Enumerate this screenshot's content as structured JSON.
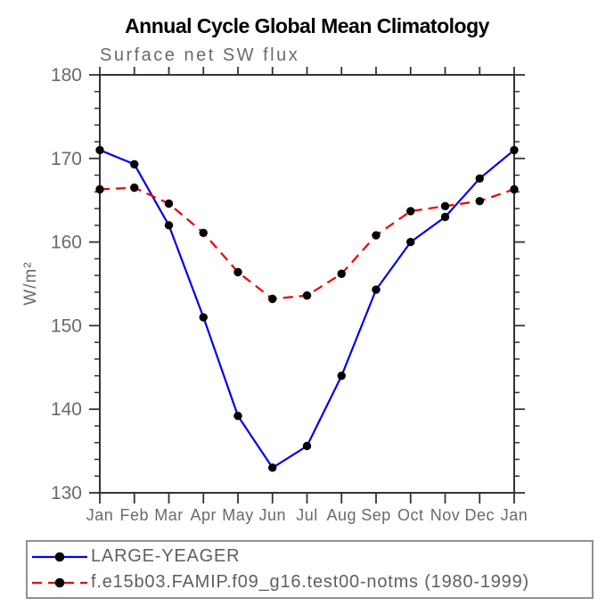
{
  "title": "Annual Cycle Global Mean Climatology",
  "subtitle": "Surface net SW flux",
  "chart_data": {
    "type": "line",
    "categories": [
      "Jan",
      "Feb",
      "Mar",
      "Apr",
      "May",
      "Jun",
      "Jul",
      "Aug",
      "Sep",
      "Oct",
      "Nov",
      "Dec",
      "Jan"
    ],
    "xlabel": "",
    "ylabel": "W/m²",
    "ylim": [
      130,
      180
    ],
    "ytick_major": 10,
    "ytick_minor": 2,
    "yticks": [
      130,
      140,
      150,
      160,
      170,
      180
    ],
    "grid": false,
    "legend_position": "bottom",
    "series": [
      {
        "name": "LARGE-YEAGER",
        "color": "#0000ee",
        "line_style": "solid",
        "marker": "black-filled-circle",
        "values": [
          171.0,
          169.3,
          162.0,
          151.0,
          139.2,
          133.0,
          135.6,
          144.0,
          154.3,
          160.0,
          163.0,
          167.6,
          171.0
        ]
      },
      {
        "name": "f.e15b03.FAMIP.f09_g16.test00-notms (1980-1999)",
        "color": "#ee0000",
        "line_style": "dashed",
        "marker": "black-filled-circle",
        "values": [
          166.3,
          166.5,
          164.6,
          161.1,
          156.4,
          153.2,
          153.6,
          156.2,
          160.8,
          163.7,
          164.3,
          164.9,
          166.3
        ]
      }
    ]
  },
  "colors": {
    "axis": "#333333",
    "tick_label": "#6a6a6a",
    "marker": "#000000",
    "legend_border": "#909090",
    "background": "#ffffff"
  }
}
